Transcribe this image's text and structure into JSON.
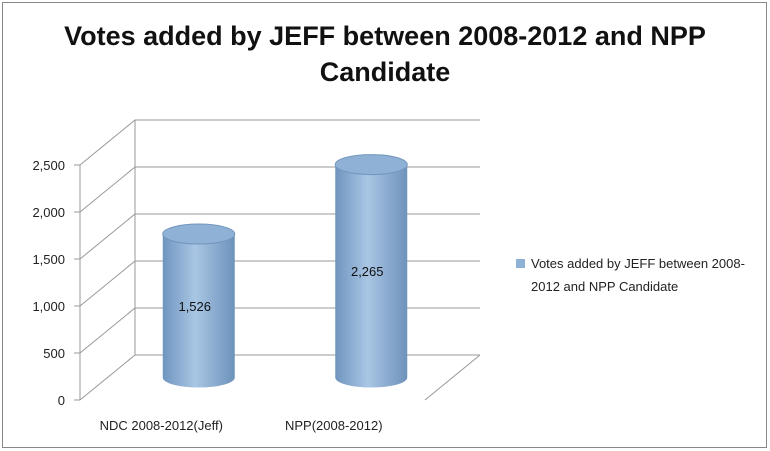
{
  "chart_data": {
    "type": "bar3d",
    "title": "Votes added by JEFF between 2008-2012 and NPP Candidate",
    "categories": [
      "NDC 2008-2012(Jeff)",
      "NPP(2008-2012)"
    ],
    "series": [
      {
        "name": "Votes added by JEFF between 2008-2012 and NPP Candidate",
        "color": "#8fb1d6",
        "values": [
          1526,
          2265
        ],
        "value_labels": [
          "1,526",
          "2,265"
        ]
      }
    ],
    "ylim": [
      0,
      2500
    ],
    "yticks": [
      0,
      500,
      {
        "value": 1000,
        "label": "1,000"
      },
      {
        "value": 1500,
        "label": "1,500"
      },
      {
        "value": 2000,
        "label": "2,000"
      },
      {
        "value": 2500,
        "label": "2,500"
      }
    ],
    "grid": true,
    "legend": "right"
  }
}
